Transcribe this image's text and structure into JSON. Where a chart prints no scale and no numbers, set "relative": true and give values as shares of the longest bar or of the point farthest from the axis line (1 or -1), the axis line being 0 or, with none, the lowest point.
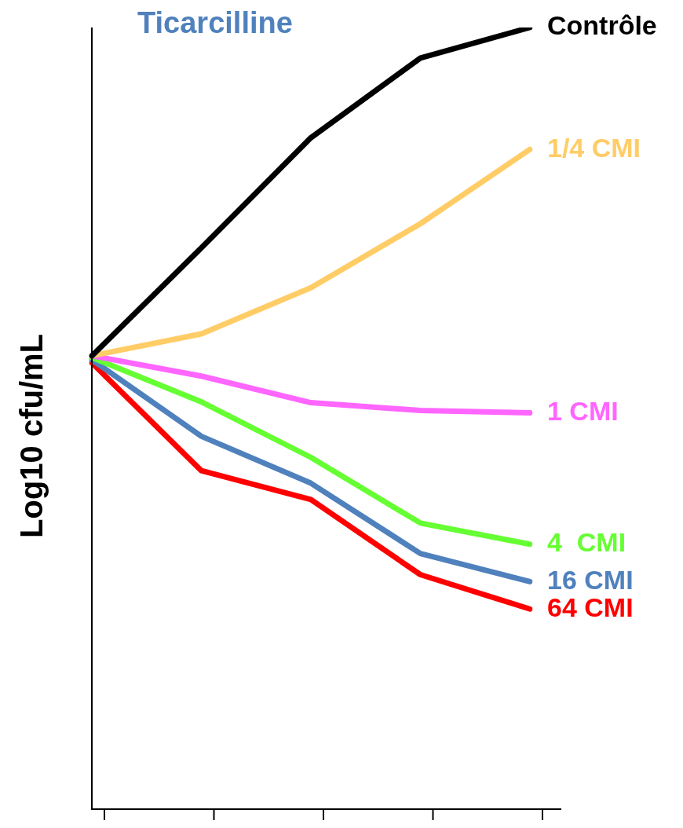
{
  "chart_data": {
    "type": "line",
    "title": "Ticarcilline",
    "ylabel": "Log10 cfu/mL",
    "relative": true,
    "legend": false,
    "categories": [
      null,
      null,
      null,
      null,
      null
    ],
    "series": [
      {
        "name": "Contrôle",
        "color": "#000000",
        "values": [
          0.58,
          0.718,
          0.859,
          0.961,
          1.0
        ]
      },
      {
        "name": "1/4 CMI",
        "color": "#ffcc66",
        "values": [
          0.58,
          0.608,
          0.667,
          0.749,
          0.844
        ]
      },
      {
        "name": "1 CMI",
        "color": "#ff66ff",
        "values": [
          0.58,
          0.554,
          0.52,
          0.51,
          0.507
        ]
      },
      {
        "name": "4  CMI",
        "color": "#66ff33",
        "values": [
          0.578,
          0.521,
          0.45,
          0.366,
          0.339
        ]
      },
      {
        "name": "16 CMI",
        "color": "#4f81bd",
        "values": [
          0.575,
          0.477,
          0.417,
          0.327,
          0.291
        ]
      },
      {
        "name": "64 CMI",
        "color": "#ff0000",
        "values": [
          0.571,
          0.433,
          0.396,
          0.3,
          0.256
        ]
      }
    ]
  }
}
